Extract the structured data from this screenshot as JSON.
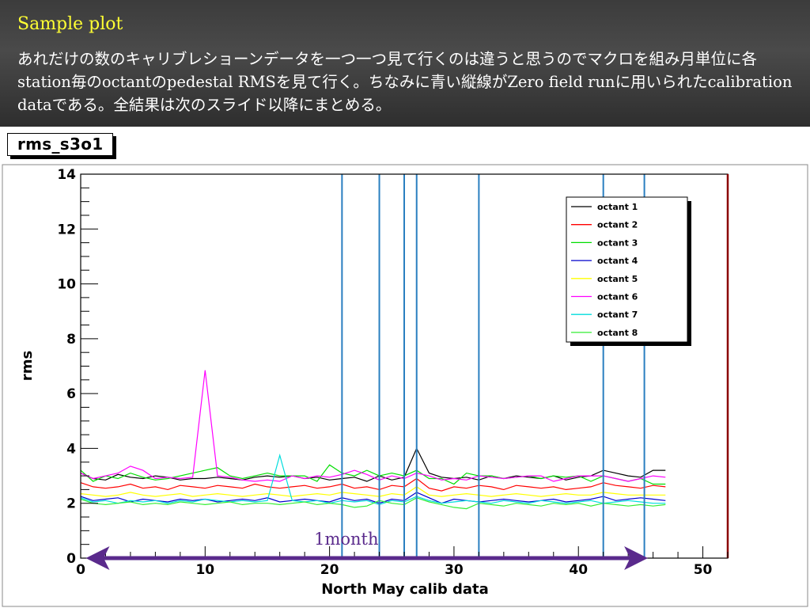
{
  "slide": {
    "title": "Sample plot",
    "description": "あれだけの数のキャリブレショーンデータを一つ一つ見て行くのは違うと思うのでマクロを組み月単位に各station毎のoctantのpedestal RMSを見て行く。ちなみに青い縦線がZero field runに用いられたcalibration dataである。全結果は次のスライド以降にまとめる。"
  },
  "chart_data": {
    "type": "line",
    "histogram_name": "rms_s3o1",
    "title": "",
    "xlabel": "North May calib data",
    "ylabel": "rms",
    "xlim": [
      0,
      52
    ],
    "ylim": [
      0,
      14
    ],
    "x_major_ticks": [
      0,
      10,
      20,
      30,
      40,
      50
    ],
    "y_major_ticks": [
      0,
      2,
      4,
      6,
      8,
      10,
      12,
      14
    ],
    "grid": false,
    "legend_position": "top-right",
    "x": [
      0,
      1,
      2,
      3,
      4,
      5,
      6,
      7,
      8,
      9,
      10,
      11,
      12,
      13,
      14,
      15,
      16,
      17,
      18,
      19,
      20,
      21,
      22,
      23,
      24,
      25,
      26,
      27,
      28,
      29,
      30,
      31,
      32,
      33,
      34,
      35,
      36,
      37,
      38,
      39,
      40,
      41,
      42,
      43,
      44,
      45,
      46,
      47
    ],
    "series": [
      {
        "name": "octant 1",
        "color": "#000000",
        "values": [
          3.1,
          2.9,
          2.85,
          3.05,
          2.95,
          2.9,
          3.0,
          2.95,
          2.85,
          2.9,
          2.9,
          2.95,
          2.9,
          2.85,
          2.95,
          3.0,
          2.95,
          3.0,
          2.9,
          2.95,
          2.85,
          2.9,
          2.95,
          2.8,
          3.0,
          2.85,
          2.95,
          4.0,
          3.1,
          2.95,
          2.9,
          2.95,
          2.85,
          3.0,
          2.9,
          3.0,
          2.95,
          2.9,
          3.0,
          2.85,
          2.95,
          3.0,
          3.2,
          3.1,
          3.0,
          2.95,
          3.2,
          3.2
        ]
      },
      {
        "name": "octant 2",
        "color": "#ff0000",
        "values": [
          2.75,
          2.6,
          2.55,
          2.6,
          2.7,
          2.55,
          2.6,
          2.5,
          2.65,
          2.6,
          2.55,
          2.65,
          2.6,
          2.55,
          2.7,
          2.6,
          2.55,
          2.6,
          2.65,
          2.55,
          2.6,
          2.7,
          2.55,
          2.6,
          2.5,
          2.65,
          2.6,
          2.9,
          2.55,
          2.45,
          2.6,
          2.55,
          2.65,
          2.6,
          2.5,
          2.65,
          2.6,
          2.55,
          2.6,
          2.5,
          2.55,
          2.6,
          2.75,
          2.65,
          2.6,
          2.55,
          2.65,
          2.6
        ]
      },
      {
        "name": "octant 3",
        "color": "#00dd00",
        "values": [
          3.2,
          2.8,
          3.0,
          2.9,
          3.1,
          2.95,
          2.85,
          2.9,
          3.0,
          3.1,
          3.2,
          3.3,
          3.0,
          2.9,
          3.0,
          3.1,
          3.0,
          3.0,
          3.0,
          2.8,
          3.4,
          3.1,
          3.0,
          3.2,
          3.0,
          3.1,
          3.0,
          3.2,
          2.9,
          2.9,
          2.7,
          3.1,
          3.0,
          3.0,
          2.9,
          2.95,
          3.0,
          2.9,
          3.0,
          2.95,
          3.0,
          2.8,
          3.0,
          2.9,
          2.8,
          2.9,
          2.7,
          2.7
        ]
      },
      {
        "name": "octant 4",
        "color": "#0000cc",
        "values": [
          2.25,
          2.1,
          2.15,
          2.2,
          2.05,
          2.15,
          2.1,
          2.05,
          2.15,
          2.1,
          2.15,
          2.05,
          2.1,
          2.15,
          2.1,
          2.2,
          2.05,
          2.1,
          2.15,
          2.1,
          2.05,
          2.2,
          2.1,
          2.15,
          2.0,
          2.15,
          2.1,
          2.4,
          2.2,
          2.0,
          2.15,
          2.1,
          2.05,
          2.1,
          2.15,
          2.1,
          2.05,
          2.1,
          2.15,
          2.05,
          2.1,
          2.15,
          2.25,
          2.1,
          2.15,
          2.2,
          2.15,
          2.1
        ]
      },
      {
        "name": "octant 5",
        "color": "#ffff00",
        "values": [
          2.35,
          2.3,
          2.25,
          2.3,
          2.4,
          2.3,
          2.25,
          2.3,
          2.35,
          2.25,
          2.3,
          2.35,
          2.3,
          2.25,
          2.3,
          2.35,
          2.3,
          2.25,
          2.3,
          2.35,
          2.3,
          2.4,
          2.35,
          2.3,
          2.25,
          2.35,
          2.3,
          2.6,
          2.3,
          2.25,
          2.3,
          2.35,
          2.3,
          2.25,
          2.3,
          2.35,
          2.3,
          2.25,
          2.3,
          2.35,
          2.3,
          2.3,
          2.4,
          2.35,
          2.3,
          2.3,
          2.3,
          2.3
        ]
      },
      {
        "name": "octant 6",
        "color": "#ff00ff",
        "values": [
          3.1,
          2.9,
          3.0,
          3.1,
          3.35,
          3.2,
          2.9,
          2.95,
          2.9,
          2.95,
          6.85,
          3.0,
          2.95,
          2.85,
          2.8,
          2.85,
          2.8,
          3.0,
          2.9,
          3.0,
          2.95,
          3.05,
          3.2,
          3.05,
          2.85,
          3.0,
          2.9,
          3.1,
          3.0,
          2.85,
          2.9,
          2.85,
          3.0,
          2.95,
          2.9,
          2.95,
          3.0,
          3.0,
          2.8,
          2.9,
          3.0,
          3.0,
          3.0,
          2.9,
          2.8,
          2.9,
          3.0,
          2.95
        ]
      },
      {
        "name": "octant 7",
        "color": "#00dddd",
        "values": [
          2.2,
          2.05,
          2.1,
          2.0,
          2.1,
          2.05,
          2.1,
          2.0,
          2.1,
          2.05,
          2.15,
          2.1,
          2.05,
          2.1,
          2.05,
          2.1,
          3.75,
          2.1,
          2.05,
          2.1,
          2.0,
          2.1,
          2.05,
          2.1,
          1.95,
          2.1,
          2.05,
          2.25,
          2.1,
          2.0,
          2.05,
          2.1,
          2.05,
          2.0,
          2.1,
          2.05,
          2.0,
          2.1,
          2.05,
          2.0,
          2.05,
          2.1,
          2.0,
          2.05,
          2.1,
          2.05,
          2.0,
          2.0
        ]
      },
      {
        "name": "octant 8",
        "color": "#33ee33",
        "values": [
          2.15,
          2.0,
          1.95,
          2.0,
          2.05,
          1.95,
          2.0,
          1.95,
          2.05,
          2.0,
          1.95,
          2.0,
          2.05,
          1.95,
          2.0,
          2.0,
          1.95,
          2.0,
          2.05,
          1.95,
          2.0,
          1.95,
          1.85,
          1.9,
          2.1,
          2.0,
          1.95,
          2.2,
          2.05,
          1.95,
          1.85,
          1.8,
          2.0,
          1.95,
          1.9,
          2.0,
          1.95,
          1.9,
          2.0,
          1.95,
          2.0,
          1.9,
          2.0,
          1.95,
          1.9,
          1.95,
          1.9,
          1.95
        ]
      }
    ],
    "vertical_lines": {
      "color": "#2a7fc0",
      "x": [
        21,
        24,
        26,
        27,
        32,
        42,
        45.3
      ]
    },
    "annotation": {
      "text": "1month",
      "x_from": 0,
      "x_to": 46,
      "y": 0,
      "color": "#5a2a8c"
    }
  }
}
